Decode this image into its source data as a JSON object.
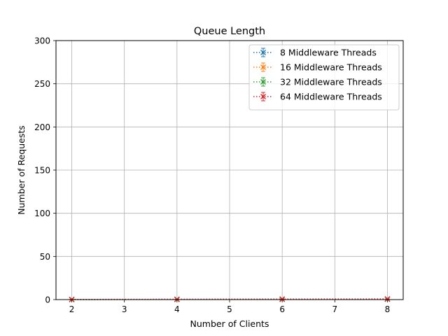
{
  "chart_data": {
    "type": "line",
    "title": "Queue Length",
    "xlabel": "Number of Clients",
    "ylabel": "Number of Requests",
    "x": [
      2,
      4,
      6,
      8
    ],
    "xlim": [
      1.7,
      8.3
    ],
    "ylim": [
      0,
      300
    ],
    "xticks": [
      2,
      3,
      4,
      5,
      6,
      7,
      8
    ],
    "yticks": [
      0,
      50,
      100,
      150,
      200,
      250,
      300
    ],
    "grid": true,
    "legend_position": "top-right",
    "series": [
      {
        "name": "8 Middleware Threads",
        "color": "#1f77b4",
        "values": [
          0.1,
          0.2,
          0.3,
          0.4
        ],
        "errors": [
          0.1,
          0.1,
          0.1,
          0.1
        ]
      },
      {
        "name": "16 Middleware Threads",
        "color": "#ff7f0e",
        "values": [
          0.1,
          0.2,
          0.4,
          0.5
        ],
        "errors": [
          0.1,
          0.1,
          0.1,
          0.1
        ]
      },
      {
        "name": "32 Middleware Threads",
        "color": "#2ca02c",
        "values": [
          0.1,
          0.3,
          0.5,
          0.6
        ],
        "errors": [
          0.1,
          0.1,
          0.1,
          0.1
        ]
      },
      {
        "name": "64 Middleware Threads",
        "color": "#d62728",
        "values": [
          0.2,
          0.4,
          0.6,
          0.8
        ],
        "errors": [
          0.1,
          0.1,
          0.1,
          0.1
        ]
      }
    ]
  }
}
